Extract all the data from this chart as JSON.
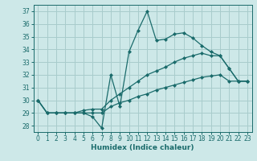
{
  "xlabel": "Humidex (Indice chaleur)",
  "xlim": [
    -0.5,
    23.5
  ],
  "ylim": [
    27.5,
    37.5
  ],
  "yticks": [
    28,
    29,
    30,
    31,
    32,
    33,
    34,
    35,
    36,
    37
  ],
  "xticks": [
    0,
    1,
    2,
    3,
    4,
    5,
    6,
    7,
    8,
    9,
    10,
    11,
    12,
    13,
    14,
    15,
    16,
    17,
    18,
    19,
    20,
    21,
    22,
    23
  ],
  "background_color": "#cde8e8",
  "grid_color": "#a8cccc",
  "line_color": "#1a6b6b",
  "series": [
    {
      "x": [
        0,
        1,
        2,
        3,
        4,
        5,
        6,
        7,
        8,
        9,
        10,
        11,
        12,
        13,
        14,
        15,
        16,
        17,
        18,
        19,
        20,
        21,
        22,
        23
      ],
      "y": [
        30.0,
        29.0,
        29.0,
        29.0,
        29.0,
        29.0,
        28.7,
        27.8,
        32.0,
        29.5,
        33.8,
        35.5,
        37.0,
        34.7,
        34.8,
        35.2,
        35.3,
        34.9,
        34.3,
        33.8,
        33.5,
        32.5,
        31.5,
        31.5
      ]
    },
    {
      "x": [
        0,
        1,
        2,
        3,
        4,
        5,
        6,
        7,
        8,
        9,
        10,
        11,
        12,
        13,
        14,
        15,
        16,
        17,
        18,
        19,
        20,
        21,
        22,
        23
      ],
      "y": [
        30.0,
        29.0,
        29.0,
        29.0,
        29.0,
        29.2,
        29.3,
        29.3,
        30.0,
        30.5,
        31.0,
        31.5,
        32.0,
        32.3,
        32.6,
        33.0,
        33.3,
        33.5,
        33.7,
        33.5,
        33.5,
        32.5,
        31.5,
        31.5
      ]
    },
    {
      "x": [
        0,
        1,
        2,
        3,
        4,
        5,
        6,
        7,
        8,
        9,
        10,
        11,
        12,
        13,
        14,
        15,
        16,
        17,
        18,
        19,
        20,
        21,
        22,
        23
      ],
      "y": [
        30.0,
        29.0,
        29.0,
        29.0,
        29.0,
        29.0,
        29.0,
        29.0,
        29.5,
        29.8,
        30.0,
        30.3,
        30.5,
        30.8,
        31.0,
        31.2,
        31.4,
        31.6,
        31.8,
        31.9,
        32.0,
        31.5,
        31.5,
        31.5
      ]
    }
  ]
}
